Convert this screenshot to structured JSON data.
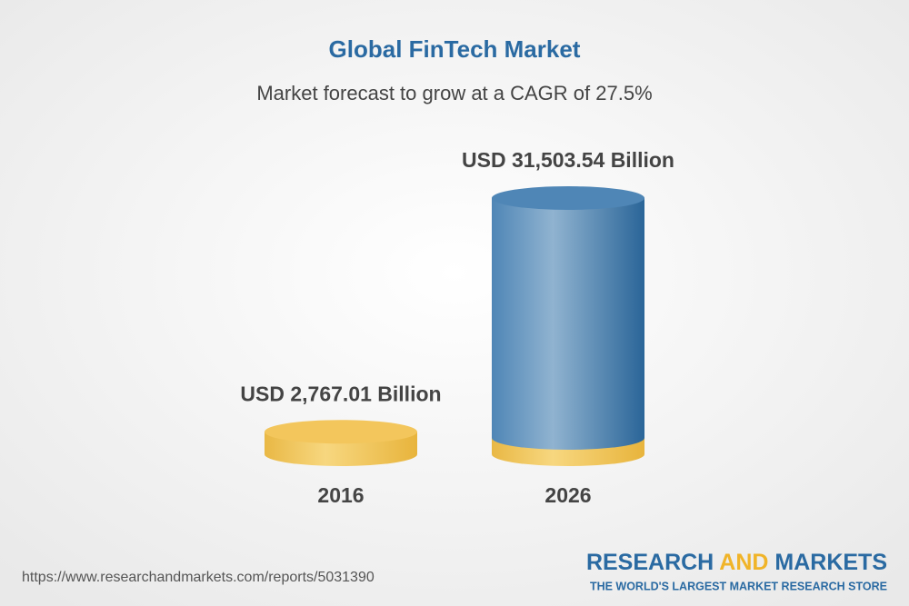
{
  "chart_data": {
    "type": "cylinder",
    "title": "Global FinTech Market",
    "subtitle": "Market forecast to grow at a CAGR of 27.5%",
    "categories": [
      "2016",
      "2026"
    ],
    "values": [
      2767.01,
      31503.54
    ],
    "value_labels": [
      "USD 2,767.01 Billion",
      "USD 31,503.54 Billion"
    ],
    "colors": [
      "#f3c65c",
      "#4f86b6"
    ]
  },
  "footer": {
    "url": "https://www.researchandmarkets.com/reports/5031390",
    "brand": {
      "first": "RESEARCH",
      "middle": "AND",
      "last": "MARKETS"
    },
    "tagline": "THE WORLD'S LARGEST MARKET RESEARCH STORE"
  }
}
